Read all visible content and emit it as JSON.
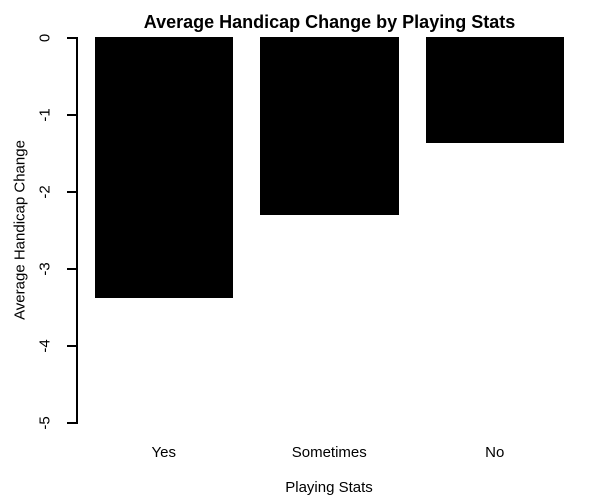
{
  "chart_data": {
    "type": "bar",
    "title": "Average Handicap Change by Playing Stats",
    "xlabel": "Playing Stats",
    "ylabel": "Average Handicap Change",
    "categories": [
      "Yes",
      "Sometimes",
      "No"
    ],
    "values": [
      -3.38,
      -2.3,
      -1.37
    ],
    "ylim": [
      -5,
      0
    ],
    "yticks": [
      0,
      -1,
      -2,
      -3,
      -4,
      -5
    ],
    "ytick_labels": [
      "0",
      "-1",
      "-2",
      "-3",
      "-4",
      "-5"
    ],
    "bar_color": "#000000",
    "axis_color": "#000000",
    "background": "#ffffff",
    "grid": false,
    "legend_position": "none"
  }
}
